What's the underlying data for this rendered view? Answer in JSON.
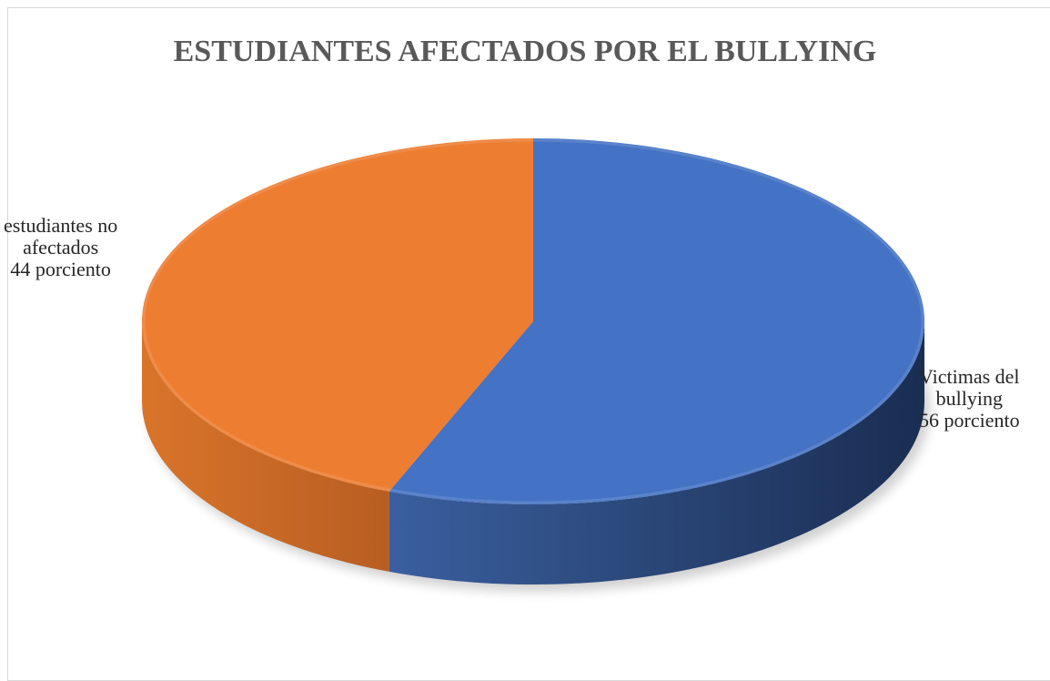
{
  "chart_data": {
    "type": "pie",
    "title": "ESTUDIANTES AFECTADOS POR EL BULLYING",
    "categories": [
      "Victimas del bullying",
      "estudiantes no afectados"
    ],
    "values": [
      56,
      44
    ],
    "colors": [
      "#4472c4",
      "#ed7d31"
    ],
    "three_d": true,
    "legend": "none",
    "data_labels": [
      {
        "line1": "Victimas del",
        "line2": "bullying",
        "line3": "56 porciento"
      },
      {
        "line1": "estudiantes no",
        "line2": "afectados",
        "line3": "44 porciento"
      }
    ]
  }
}
